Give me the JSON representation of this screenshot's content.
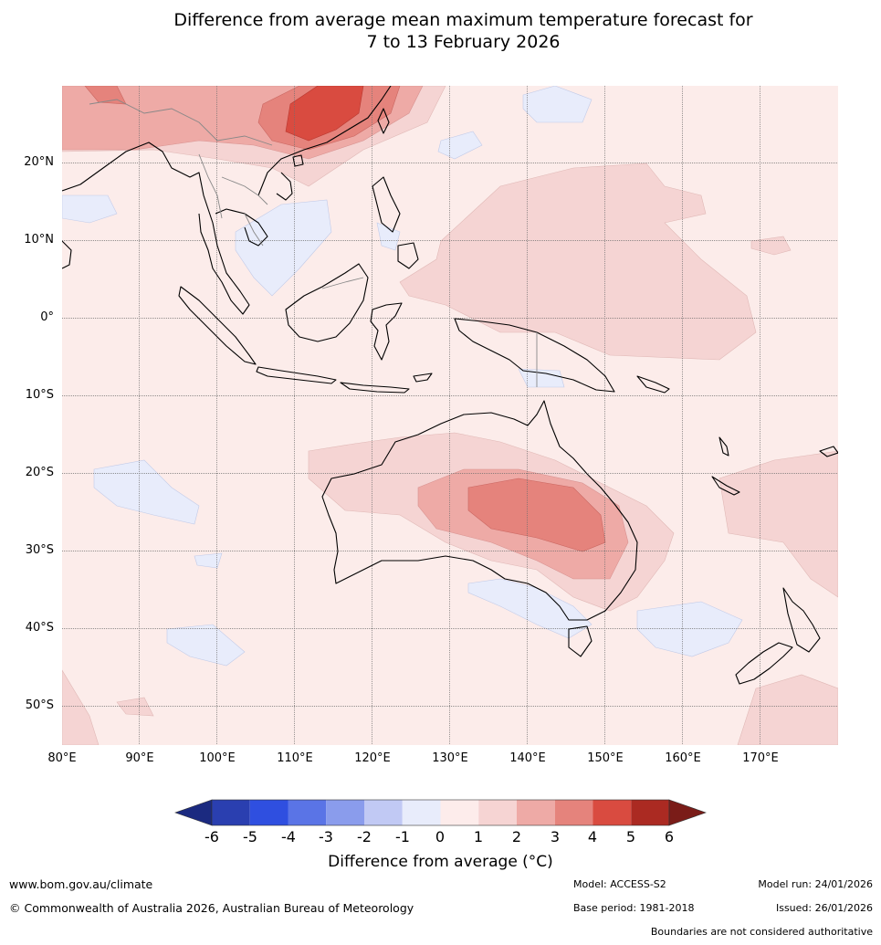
{
  "title": {
    "line1": "Difference from average mean maximum temperature forecast for",
    "line2": "7 to 13 February 2026"
  },
  "map": {
    "lon_range": [
      80,
      180
    ],
    "lat_range": [
      -55,
      30
    ],
    "grid_lons": [
      90,
      100,
      110,
      120,
      130,
      140,
      150,
      160,
      170
    ],
    "grid_lats": [
      20,
      10,
      0,
      -10,
      -20,
      -30,
      -40,
      -50
    ],
    "lat_labels": [
      "20°N",
      "10°N",
      "0°",
      "10°S",
      "20°S",
      "30°S",
      "40°S",
      "50°S"
    ],
    "lon_labels": [
      "80°E",
      "90°E",
      "100°E",
      "110°E",
      "120°E",
      "130°E",
      "140°E",
      "150°E",
      "160°E",
      "170°E"
    ]
  },
  "colorbar": {
    "ticks": [
      "-6",
      "-5",
      "-4",
      "-3",
      "-2",
      "-1",
      "0",
      "1",
      "2",
      "3",
      "4",
      "5",
      "6"
    ],
    "colors": [
      "#2a3fb0",
      "#2f4fe0",
      "#5a74e6",
      "#8a9cec",
      "#c1c9f4",
      "#e8ecfb",
      "#fdeceb",
      "#f6d4d3",
      "#eeaaa6",
      "#e5837c",
      "#d94b40",
      "#ab2a22"
    ],
    "under_color": "#1b2a80",
    "over_color": "#7a1c18",
    "label": "Difference from average ($^\\circ$C)",
    "label_display": "Difference from average (°C)"
  },
  "footer": {
    "url": "www.bom.gov.au/climate",
    "copyright": "© Commonwealth of Australia 2026, Australian Bureau of Meteorology",
    "model": "Model: ACCESS-S2",
    "base_period": "Base period: 1981-2018",
    "model_run": "Model run: 24/01/2026",
    "issued": "Issued: 26/01/2026",
    "disclaimer": "Boundaries are not considered authoritative"
  }
}
